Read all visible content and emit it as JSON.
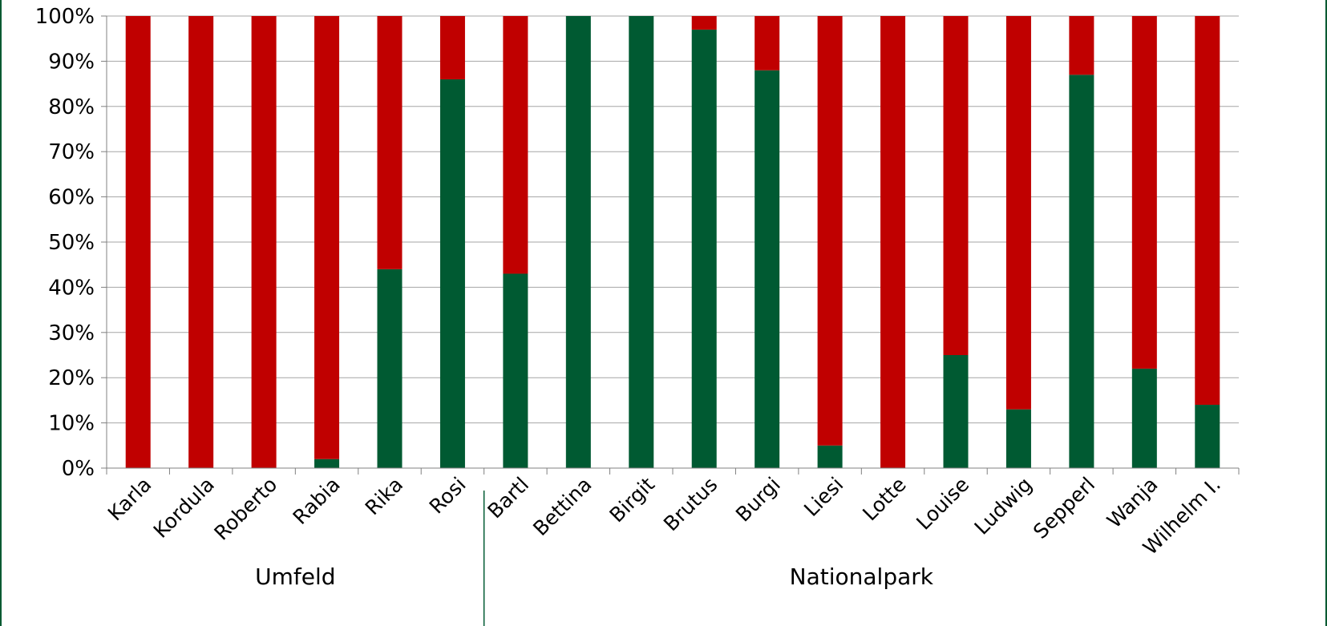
{
  "colors": {
    "bottom": "#005a32",
    "top": "#c00000",
    "grid": "#a6a6a6",
    "axis": "#808080"
  },
  "chart_data": {
    "type": "bar",
    "stacked": true,
    "normalized": true,
    "title": "",
    "xlabel": "",
    "ylabel": "",
    "ylim": [
      0,
      100
    ],
    "yticks": [
      "0%",
      "10%",
      "20%",
      "30%",
      "40%",
      "50%",
      "60%",
      "70%",
      "80%",
      "90%",
      "100%"
    ],
    "grid": true,
    "legend": "none",
    "categories": [
      "Karla",
      "Kordula",
      "Roberto",
      "Rabia",
      "Rika",
      "Rosi",
      "Bartl",
      "Bettina",
      "Birgit",
      "Brutus",
      "Burgi",
      "Liesi",
      "Lotte",
      "Louise",
      "Ludwig",
      "Sepperl",
      "Wanja",
      "Wilhelm I."
    ],
    "groups": [
      {
        "label": "Umfeld",
        "count": 6
      },
      {
        "label": "Nationalpark",
        "count": 12
      }
    ],
    "series": [
      {
        "values": [
          0,
          0,
          0,
          2,
          44,
          86,
          43,
          100,
          100,
          97,
          88,
          5,
          0,
          25,
          13,
          87,
          22,
          14
        ]
      },
      {
        "values": [
          100,
          100,
          100,
          98,
          56,
          14,
          57,
          0,
          0,
          3,
          12,
          95,
          100,
          75,
          87,
          13,
          78,
          86
        ]
      }
    ]
  }
}
